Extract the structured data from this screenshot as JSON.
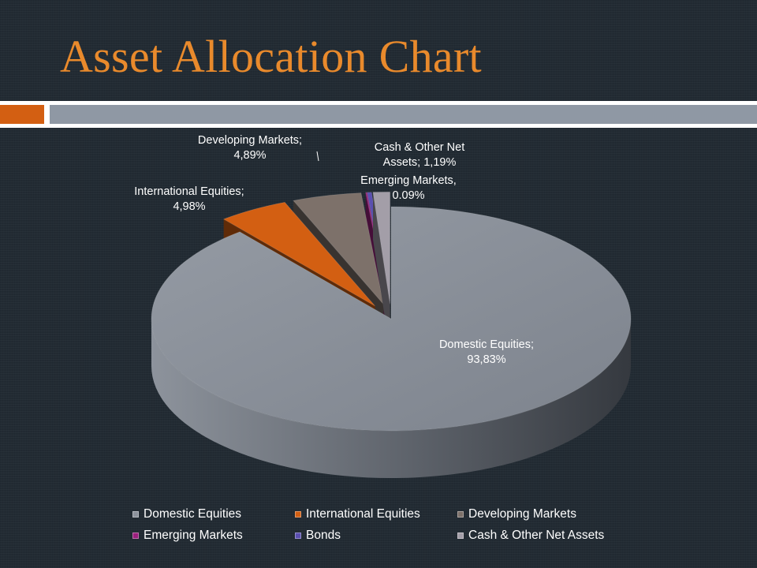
{
  "slide": {
    "title": "Asset Allocation Chart"
  },
  "colors": {
    "title": "#e98a2c",
    "accent_bar": "#d35f12",
    "header_bar": "#8f98a4",
    "background": "#222b33"
  },
  "chart_data": {
    "type": "pie",
    "style": "3d-exploded",
    "slices": [
      {
        "name": "Domestic Equities",
        "value": 93.83,
        "label": "Domestic Equities;\n93,83%",
        "color": "#8c929c"
      },
      {
        "name": "International Equities",
        "value": 4.98,
        "label": "International Equities;\n4,98%",
        "color": "#d35f12"
      },
      {
        "name": "Developing Markets",
        "value": 4.89,
        "label": "Developing Markets;\n4,89%",
        "color": "#7d716a"
      },
      {
        "name": "Emerging Markets",
        "value": 0.09,
        "label": "Emerging Markets,\n0.09%",
        "color": "#9a1f7d"
      },
      {
        "name": "Bonds",
        "value": 0.3,
        "label": "",
        "color": "#5a4fb0"
      },
      {
        "name": "Cash & Other Net Assets",
        "value": 1.19,
        "label": "Cash & Other Net\nAssets; 1,19%",
        "color": "#a39ea8"
      }
    ],
    "legend": {
      "position": "bottom",
      "rows": [
        [
          "Domestic Equities",
          "International Equities",
          "Developing Markets"
        ],
        [
          "Emerging Markets",
          "Bonds",
          "Cash & Other Net Assets"
        ]
      ]
    }
  }
}
